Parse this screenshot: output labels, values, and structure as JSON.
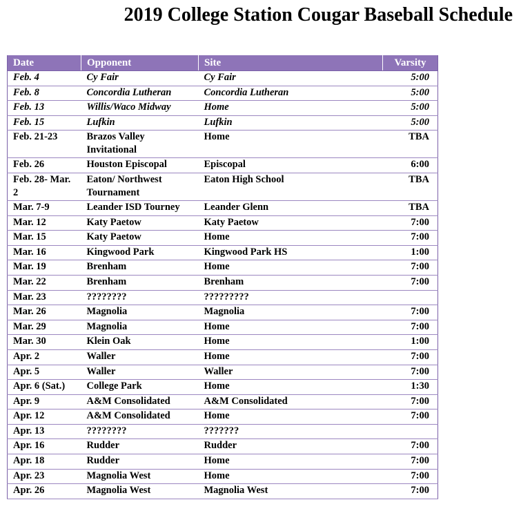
{
  "title": "2019 College Station Cougar Baseball Schedule",
  "table": {
    "headers": [
      "Date",
      "Opponent",
      "Site",
      "Varsity"
    ],
    "rows": [
      {
        "date": "Feb. 4",
        "opponent": "Cy Fair",
        "site": "Cy Fair",
        "varsity": "5:00",
        "italic": true
      },
      {
        "date": "Feb. 8",
        "opponent": "Concordia Lutheran",
        "site": "Concordia Lutheran",
        "varsity": "5:00",
        "italic": true
      },
      {
        "date": "Feb. 13",
        "opponent": "Willis/Waco Midway",
        "site": "Home",
        "varsity": "5:00",
        "italic": true
      },
      {
        "date": "Feb. 15",
        "opponent": "Lufkin",
        "site": "Lufkin",
        "varsity": "5:00",
        "italic": true
      },
      {
        "date": "Feb. 21-23",
        "opponent": "Brazos Valley Invitational",
        "site": "Home",
        "varsity": "TBA",
        "italic": false
      },
      {
        "date": "Feb. 26",
        "opponent": "Houston Episcopal",
        "site": "Episcopal",
        "varsity": "6:00",
        "italic": false
      },
      {
        "date": "Feb. 28- Mar. 2",
        "opponent": "Eaton/ Northwest Tournament",
        "site": "Eaton High School",
        "varsity": "TBA",
        "italic": false
      },
      {
        "date": "Mar. 7-9",
        "opponent": "Leander ISD Tourney",
        "site": "Leander Glenn",
        "varsity": "TBA",
        "italic": false
      },
      {
        "date": "Mar. 12",
        "opponent": "Katy Paetow",
        "site": "Katy Paetow",
        "varsity": "7:00",
        "italic": false
      },
      {
        "date": "Mar. 15",
        "opponent": "Katy Paetow",
        "site": "Home",
        "varsity": "7:00",
        "italic": false
      },
      {
        "date": "Mar. 16",
        "opponent": "Kingwood Park",
        "site": "Kingwood Park HS",
        "varsity": "1:00",
        "italic": false
      },
      {
        "date": "Mar. 19",
        "opponent": "Brenham",
        "site": "Home",
        "varsity": "7:00",
        "italic": false
      },
      {
        "date": "Mar. 22",
        "opponent": "Brenham",
        "site": "Brenham",
        "varsity": "7:00",
        "italic": false
      },
      {
        "date": "Mar. 23",
        "opponent": "????????",
        "site": "?????????",
        "varsity": "",
        "italic": false
      },
      {
        "date": "Mar. 26",
        "opponent": "Magnolia",
        "site": "Magnolia",
        "varsity": "7:00",
        "italic": false
      },
      {
        "date": "Mar. 29",
        "opponent": "Magnolia",
        "site": "Home",
        "varsity": "7:00",
        "italic": false
      },
      {
        "date": "Mar. 30",
        "opponent": "Klein Oak",
        "site": "Home",
        "varsity": "1:00",
        "italic": false
      },
      {
        "date": "Apr. 2",
        "opponent": "Waller",
        "site": "Home",
        "varsity": "7:00",
        "italic": false
      },
      {
        "date": "Apr. 5",
        "opponent": "Waller",
        "site": "Waller",
        "varsity": "7:00",
        "italic": false
      },
      {
        "date": "Apr. 6 (Sat.)",
        "opponent": "College Park",
        "site": "Home",
        "varsity": "1:30",
        "italic": false
      },
      {
        "date": "Apr. 9",
        "opponent": "A&M Consolidated",
        "site": "A&M Consolidated",
        "varsity": "7:00",
        "italic": false
      },
      {
        "date": "Apr. 12",
        "opponent": "A&M Consolidated",
        "site": "Home",
        "varsity": "7:00",
        "italic": false
      },
      {
        "date": "Apr. 13",
        "opponent": "????????",
        "site": "???????",
        "varsity": "",
        "italic": false
      },
      {
        "date": "Apr. 16",
        "opponent": "Rudder",
        "site": "Rudder",
        "varsity": "7:00",
        "italic": false
      },
      {
        "date": "Apr. 18",
        "opponent": "Rudder",
        "site": "Home",
        "varsity": "7:00",
        "italic": false
      },
      {
        "date": "Apr. 23",
        "opponent": "Magnolia West",
        "site": "Home",
        "varsity": "7:00",
        "italic": false
      },
      {
        "date": "Apr. 26",
        "opponent": "Magnolia West",
        "site": "Magnolia West",
        "varsity": "7:00",
        "italic": false
      }
    ]
  }
}
